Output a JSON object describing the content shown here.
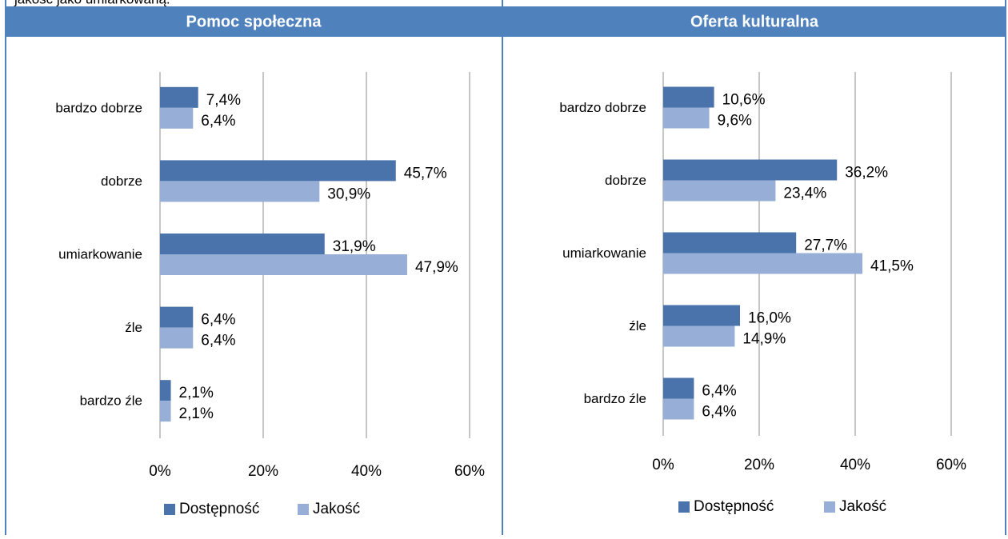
{
  "intro_text": "jakość jako umiarkowaną.",
  "chart_data": [
    {
      "type": "bar",
      "orientation": "horizontal",
      "title": "Pomoc społeczna",
      "categories": [
        "bardzo dobrze",
        "dobrze",
        "umiarkowanie",
        "źle",
        "bardzo źle"
      ],
      "series": [
        {
          "name": "Dostępność",
          "color": "#4a73ab",
          "values": [
            7.4,
            45.7,
            31.9,
            6.4,
            2.1
          ],
          "value_labels": [
            "7,4%",
            "45,7%",
            "31,9%",
            "6,4%",
            "2,1%"
          ]
        },
        {
          "name": "Jakość",
          "color": "#97afd7",
          "values": [
            6.4,
            30.9,
            47.9,
            6.4,
            2.1
          ],
          "value_labels": [
            "6,4%",
            "30,9%",
            "47,9%",
            "6,4%",
            "2,1%"
          ]
        }
      ],
      "xlim": [
        0,
        60
      ],
      "xticks": [
        {
          "value": 0,
          "label": "0%"
        },
        {
          "value": 20,
          "label": "20%"
        },
        {
          "value": 40,
          "label": "40%"
        },
        {
          "value": 60,
          "label": "60%"
        }
      ],
      "grid": true,
      "legend": "bottom"
    },
    {
      "type": "bar",
      "orientation": "horizontal",
      "title": "Oferta kulturalna",
      "categories": [
        "bardzo dobrze",
        "dobrze",
        "umiarkowanie",
        "źle",
        "bardzo źle"
      ],
      "series": [
        {
          "name": "Dostępność",
          "color": "#4a73ab",
          "values": [
            10.6,
            36.2,
            27.7,
            16.0,
            6.4
          ],
          "value_labels": [
            "10,6%",
            "36,2%",
            "27,7%",
            "16,0%",
            "6,4%"
          ]
        },
        {
          "name": "Jakość",
          "color": "#97afd7",
          "values": [
            9.6,
            23.4,
            41.5,
            14.9,
            6.4
          ],
          "value_labels": [
            "9,6%",
            "23,4%",
            "41,5%",
            "14,9%",
            "6,4%"
          ]
        }
      ],
      "xlim": [
        0,
        60
      ],
      "xticks": [
        {
          "value": 0,
          "label": "0%"
        },
        {
          "value": 20,
          "label": "20%"
        },
        {
          "value": 40,
          "label": "40%"
        },
        {
          "value": 60,
          "label": "60%"
        }
      ],
      "grid": true,
      "legend": "bottom"
    }
  ]
}
